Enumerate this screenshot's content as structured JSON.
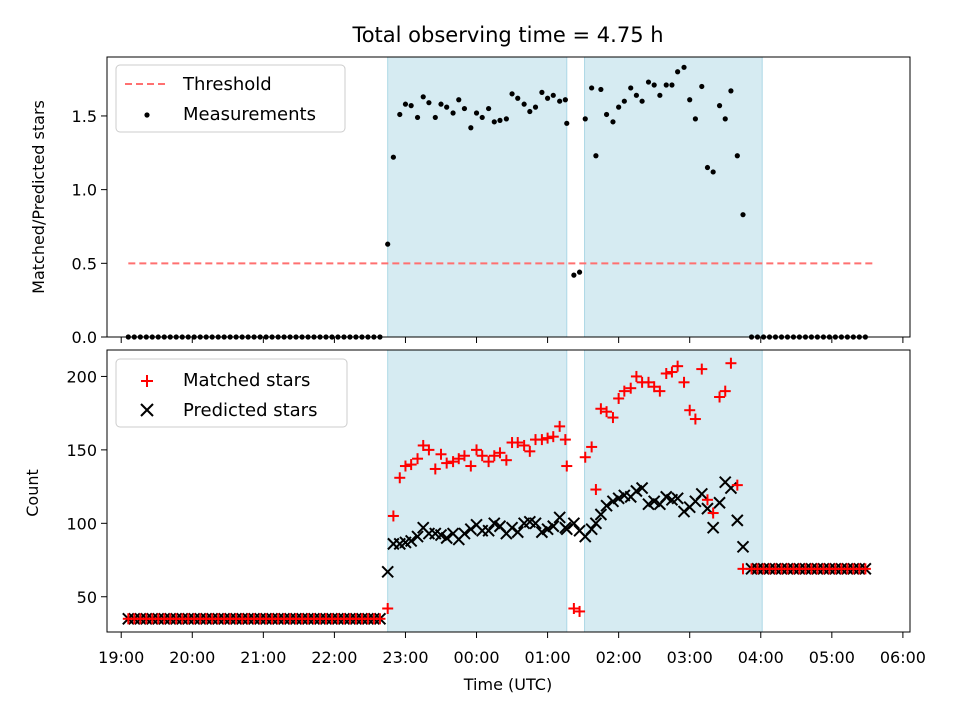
{
  "colors": {
    "threshold": "#ff7070",
    "measurements": "#000000",
    "matched": "#ff0000",
    "predicted": "#000000",
    "night_span": "#add8e6"
  },
  "chart_data": [
    {
      "type": "scatter",
      "title": "Total observing time = 4.75 h",
      "xlabel": "",
      "ylabel": "Matched/Predicted stars",
      "x_unit": "hours since 19:00 UTC",
      "xlim": [
        -0.2,
        11.1
      ],
      "ylim": [
        0,
        1.9
      ],
      "yticks": [
        "0.0",
        "0.5",
        "1.0",
        "1.5"
      ],
      "shaded_spans": [
        [
          3.75,
          6.27
        ],
        [
          6.52,
          9.02
        ]
      ],
      "legend": {
        "position": "upper-left",
        "entries": [
          "Threshold",
          "Measurements"
        ]
      },
      "series": [
        {
          "name": "Threshold",
          "kind": "dashed-line",
          "x": [
            0.1,
            10.6
          ],
          "y": [
            0.5,
            0.5
          ]
        },
        {
          "name": "Measurements",
          "kind": "points",
          "x": [],
          "y": []
        }
      ]
    },
    {
      "type": "scatter",
      "title": "",
      "xlabel": "Time (UTC)",
      "ylabel": "Count",
      "xlim": [
        -0.2,
        11.1
      ],
      "ylim": [
        26,
        218
      ],
      "yticks": [
        "50",
        "100",
        "150",
        "200"
      ],
      "xticks": [
        "19:00",
        "20:00",
        "21:00",
        "22:00",
        "23:00",
        "00:00",
        "01:00",
        "02:00",
        "03:00",
        "04:00",
        "05:00",
        "06:00"
      ],
      "shaded_spans": [
        [
          3.75,
          6.27
        ],
        [
          6.52,
          9.02
        ]
      ],
      "legend": {
        "position": "upper-left",
        "entries": [
          "Matched stars",
          "Predicted stars"
        ]
      },
      "series": [
        {
          "name": "Matched stars",
          "kind": "plus",
          "x": [],
          "y": []
        },
        {
          "name": "Predicted stars",
          "kind": "x",
          "x": [],
          "y": []
        }
      ]
    }
  ]
}
